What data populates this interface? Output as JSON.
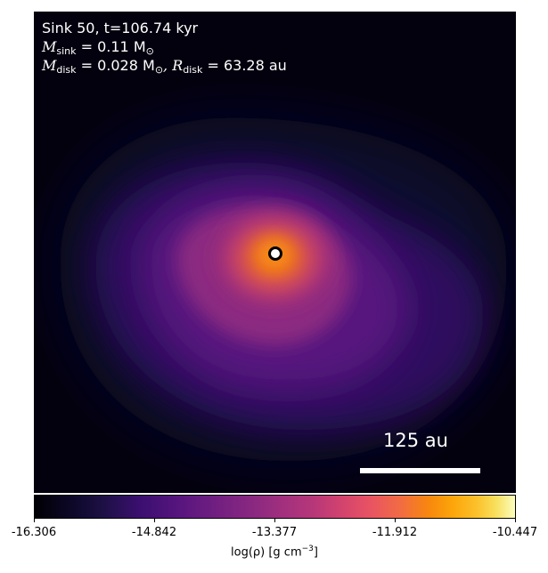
{
  "overlay": {
    "line1": "Sink 50, t=106.74 kyr",
    "sink_mass_symbol": "M",
    "sink_mass_sub": "sink",
    "sink_mass_value": " = 0.11 M",
    "sink_mass_unit_sub": "⊙",
    "disk_mass_symbol": "M",
    "disk_mass_sub": "disk",
    "disk_mass_value": " = 0.028 M",
    "disk_mass_unit_sub": "⊙",
    "disk_radius_symbol": ", R",
    "disk_radius_sub": "disk",
    "disk_radius_value": " = 63.28 au"
  },
  "scalebar": {
    "label": "125 au"
  },
  "colorbar": {
    "colormap": "inferno",
    "ticks": [
      "-16.306",
      "-14.842",
      "-13.377",
      "-11.912",
      "-10.447"
    ],
    "label_prefix": "log(ρ) [g cm",
    "label_exp": "−3",
    "label_suffix": "]"
  }
}
